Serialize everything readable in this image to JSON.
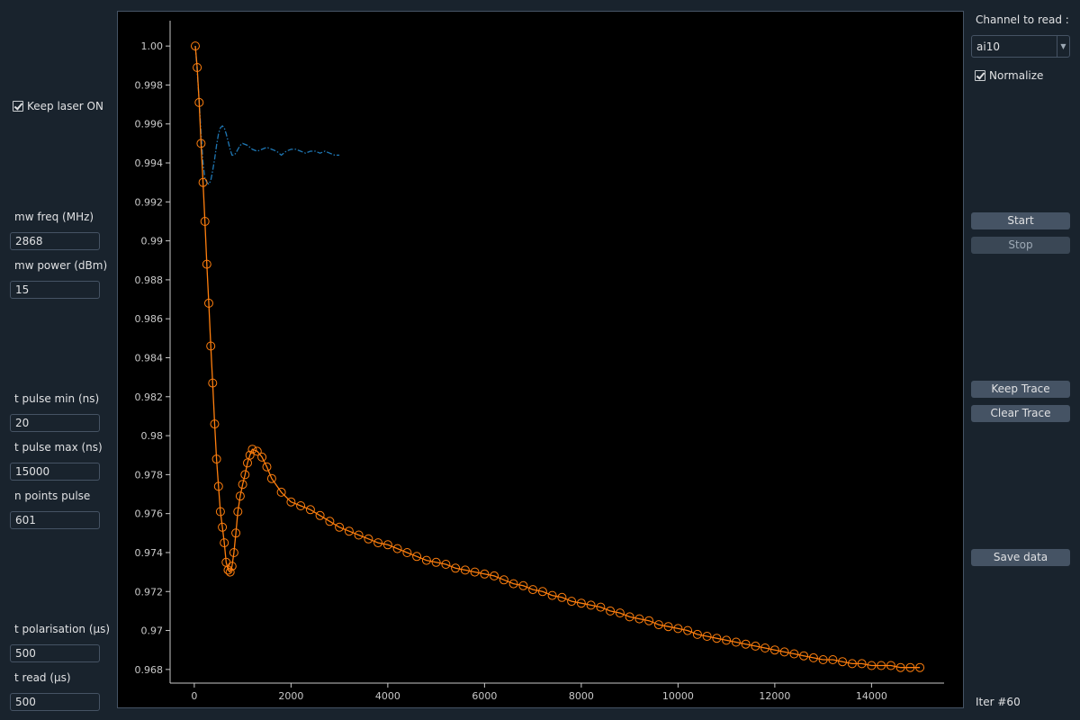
{
  "left_panel": {
    "keep_laser": {
      "label": "Keep laser ON",
      "checked": true
    },
    "mw_freq": {
      "label": "mw freq (MHz)",
      "value": "2868"
    },
    "mw_power": {
      "label": "mw power (dBm)",
      "value": "15"
    },
    "t_pulse_min": {
      "label": "t pulse min (ns)",
      "value": "20"
    },
    "t_pulse_max": {
      "label": "t pulse max (ns)",
      "value": "15000"
    },
    "n_points_pulse": {
      "label": "n points pulse",
      "value": "601"
    },
    "t_polarisation": {
      "label": "t polarisation (µs)",
      "value": "500"
    },
    "t_read": {
      "label": "t read (µs)",
      "value": "500"
    }
  },
  "right_panel": {
    "channel_label": "Channel to read :",
    "channel_value": "ai10",
    "normalize": {
      "label": "Normalize",
      "checked": true
    },
    "start_label": "Start",
    "stop_label": "Stop",
    "keep_trace_label": "Keep Trace",
    "clear_trace_label": "Clear Trace",
    "save_data_label": "Save data",
    "iter_text": "Iter #60"
  },
  "colors": {
    "background": "#19232d",
    "plot_background": "#000000",
    "kept_trace": "#1f77b4",
    "current_trace": "#ff7f0e",
    "axis": "#c8c8c8"
  },
  "chart_data": {
    "type": "line",
    "xlim": [
      -500,
      15500
    ],
    "ylim": [
      0.9673,
      1.0013
    ],
    "x_ticks": [
      0,
      2000,
      4000,
      6000,
      8000,
      10000,
      12000,
      14000
    ],
    "y_ticks": [
      0.968,
      0.97,
      0.972,
      0.974,
      0.976,
      0.978,
      0.98,
      0.982,
      0.984,
      0.986,
      0.988,
      0.99,
      0.992,
      0.994,
      0.996,
      0.998,
      1.0
    ],
    "x_tick_labels": [
      "0",
      "2000",
      "4000",
      "6000",
      "8000",
      "10000",
      "12000",
      "14000"
    ],
    "y_tick_labels": [
      "0.968",
      "0.97",
      "0.972",
      "0.974",
      "0.976",
      "0.978",
      "0.98",
      "0.982",
      "0.984",
      "0.986",
      "0.988",
      "0.99",
      "0.992",
      "0.994",
      "0.996",
      "0.998",
      "1.00"
    ],
    "series": [
      {
        "style": "line-dashdot",
        "color": "#1f77b4",
        "x": [
          20,
          60,
          100,
          140,
          180,
          220,
          260,
          300,
          340,
          380,
          420,
          460,
          500,
          540,
          580,
          620,
          660,
          700,
          740,
          780,
          820,
          860,
          900,
          950,
          1000,
          1100,
          1200,
          1300,
          1400,
          1500,
          1600,
          1700,
          1800,
          1900,
          2000,
          2100,
          2200,
          2300,
          2400,
          2500,
          2600,
          2700,
          2800,
          2900,
          3000
        ],
        "y": [
          1.0,
          0.9987,
          0.9972,
          0.9955,
          0.994,
          0.9932,
          0.993,
          0.9929,
          0.9931,
          0.9936,
          0.9942,
          0.9949,
          0.9955,
          0.9958,
          0.9959,
          0.9958,
          0.9955,
          0.9951,
          0.9947,
          0.9944,
          0.9944,
          0.9945,
          0.9947,
          0.9949,
          0.995,
          0.9949,
          0.9947,
          0.9946,
          0.9947,
          0.9948,
          0.9947,
          0.9946,
          0.9944,
          0.9946,
          0.9947,
          0.9947,
          0.9946,
          0.9945,
          0.9946,
          0.9946,
          0.9945,
          0.9946,
          0.9945,
          0.9944,
          0.9944
        ]
      },
      {
        "style": "line-circles",
        "color": "#ff7f0e",
        "x": [
          20,
          60,
          100,
          140,
          180,
          220,
          260,
          300,
          340,
          380,
          420,
          460,
          500,
          540,
          580,
          620,
          660,
          700,
          740,
          780,
          820,
          860,
          900,
          950,
          1000,
          1050,
          1100,
          1150,
          1200,
          1300,
          1400,
          1500,
          1600,
          1800,
          2000,
          2200,
          2400,
          2600,
          2800,
          3000,
          3200,
          3400,
          3600,
          3800,
          4000,
          4200,
          4400,
          4600,
          4800,
          5000,
          5200,
          5400,
          5600,
          5800,
          6000,
          6200,
          6400,
          6600,
          6800,
          7000,
          7200,
          7400,
          7600,
          7800,
          8000,
          8200,
          8400,
          8600,
          8800,
          9000,
          9200,
          9400,
          9600,
          9800,
          10000,
          10200,
          10400,
          10600,
          10800,
          11000,
          11200,
          11400,
          11600,
          11800,
          12000,
          12200,
          12400,
          12600,
          12800,
          13000,
          13200,
          13400,
          13600,
          13800,
          14000,
          14200,
          14400,
          14600,
          14800,
          15000
        ],
        "y": [
          1.0,
          0.9989,
          0.9971,
          0.995,
          0.993,
          0.991,
          0.9888,
          0.9868,
          0.9846,
          0.9827,
          0.9806,
          0.9788,
          0.9774,
          0.9761,
          0.9753,
          0.9745,
          0.9735,
          0.9731,
          0.973,
          0.9733,
          0.974,
          0.975,
          0.9761,
          0.9769,
          0.9775,
          0.978,
          0.9786,
          0.979,
          0.9793,
          0.9792,
          0.9789,
          0.9784,
          0.9778,
          0.9771,
          0.9766,
          0.9764,
          0.9762,
          0.9759,
          0.9756,
          0.9753,
          0.9751,
          0.9749,
          0.9747,
          0.9745,
          0.9744,
          0.9742,
          0.974,
          0.9738,
          0.9736,
          0.9735,
          0.9734,
          0.9732,
          0.9731,
          0.973,
          0.9729,
          0.9728,
          0.9726,
          0.9724,
          0.9723,
          0.9721,
          0.972,
          0.9718,
          0.9717,
          0.9715,
          0.9714,
          0.9713,
          0.9712,
          0.971,
          0.9709,
          0.9707,
          0.9706,
          0.9705,
          0.9703,
          0.9702,
          0.9701,
          0.97,
          0.9698,
          0.9697,
          0.9696,
          0.9695,
          0.9694,
          0.9693,
          0.9692,
          0.9691,
          0.969,
          0.9689,
          0.9688,
          0.9687,
          0.9686,
          0.9685,
          0.9685,
          0.9684,
          0.9683,
          0.9683,
          0.9682,
          0.9682,
          0.9682,
          0.9681,
          0.9681,
          0.9681
        ]
      }
    ]
  }
}
